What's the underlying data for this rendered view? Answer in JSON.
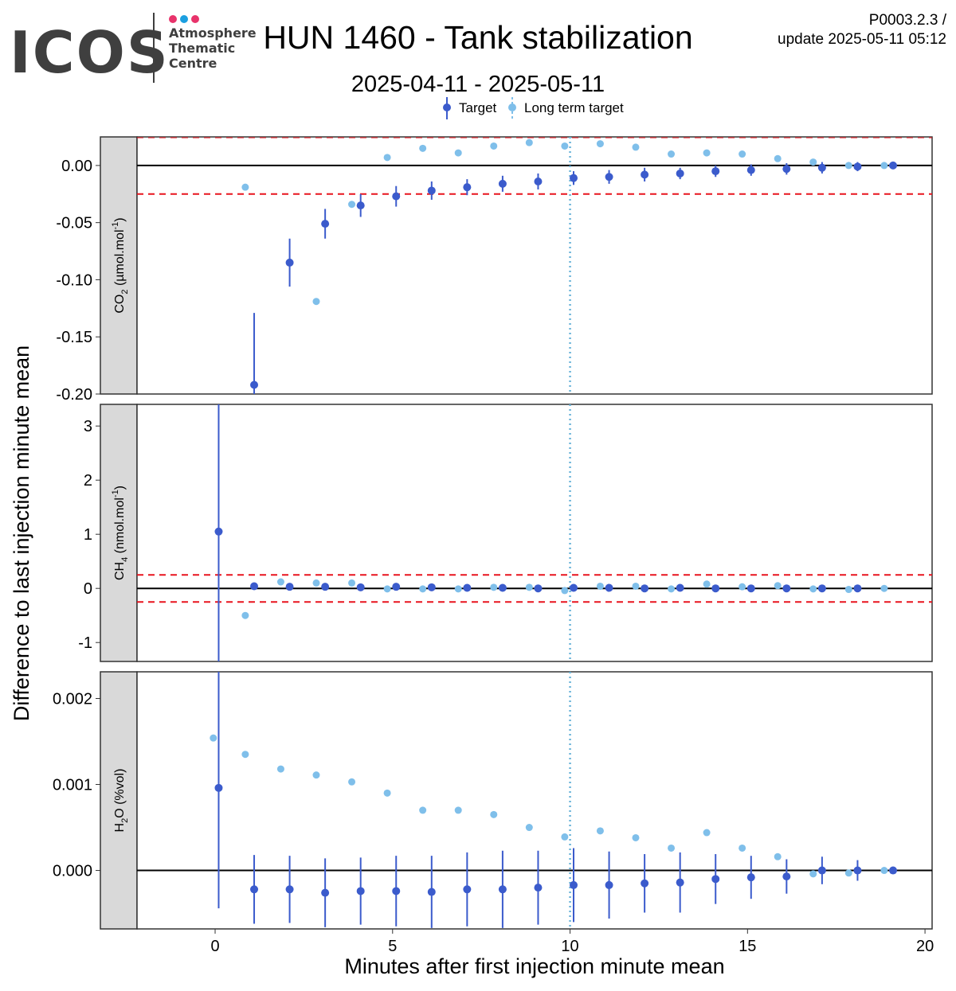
{
  "header": {
    "logo_text": "ICOS",
    "logo_sub": [
      "Atmosphere",
      "Thematic",
      "Centre"
    ],
    "logo_dot_colors": [
      "#e8336b",
      "#1b9fe0",
      "#e8336b"
    ],
    "title": "HUN 1460 - Tank stabilization",
    "subtitle": "2025-04-11 - 2025-05-11",
    "version_line1": "P0003.2.3 /",
    "version_line2": "update  2025-05-11 05:12"
  },
  "chart_data": {
    "type": "scatter",
    "xlabel": "Minutes after first injection minute mean",
    "ylabel": "Difference to last injection minute mean",
    "x_ticks": [
      0,
      5,
      10,
      15,
      20
    ],
    "xlim": [
      -2.2,
      20.2
    ],
    "vline_x": 10,
    "legend": {
      "position": "top",
      "items": [
        {
          "name": "Target",
          "color": "#3b5bcc"
        },
        {
          "name": "Long term target",
          "color": "#7fbfea"
        }
      ]
    },
    "colors": {
      "target": "#3b5bcc",
      "long_term": "#7fbfea",
      "threshold": "#e8141e",
      "vline": "#6ab4d9",
      "strip": "#d9d9d9"
    },
    "panels": [
      {
        "strip_label": "CO2 (µmol.mol-1)",
        "strip_main": "CO",
        "strip_sub": "2",
        "strip_rest": " (µmol.mol",
        "strip_sup": "-1",
        "strip_end": ")",
        "ylim": [
          -0.2,
          0.025
        ],
        "y_ticks": [
          0.0,
          -0.05,
          -0.1,
          -0.15,
          -0.2
        ],
        "y_tick_labels": [
          "0.00",
          "-0.05",
          "-0.10",
          "-0.15",
          "-0.20"
        ],
        "thresholds": [
          -0.025
        ],
        "top_threshold": 0.025,
        "target": {
          "x": [
            1.1,
            2.1,
            3.1,
            4.1,
            5.1,
            6.1,
            7.1,
            8.1,
            9.1,
            10.1,
            11.1,
            12.1,
            13.1,
            14.1,
            15.1,
            16.1,
            17.1,
            18.1,
            19.1
          ],
          "y": [
            -0.192,
            -0.085,
            -0.051,
            -0.035,
            -0.027,
            -0.022,
            -0.019,
            -0.016,
            -0.014,
            -0.011,
            -0.01,
            -0.008,
            -0.007,
            -0.005,
            -0.004,
            -0.003,
            -0.002,
            -0.001,
            0.0
          ],
          "err": [
            0.063,
            0.021,
            0.013,
            0.01,
            0.009,
            0.008,
            0.007,
            0.007,
            0.007,
            0.006,
            0.006,
            0.006,
            0.005,
            0.005,
            0.005,
            0.005,
            0.005,
            0.004,
            0.002
          ]
        },
        "long_term": {
          "x": [
            0.85,
            1.85,
            2.85,
            3.85,
            4.85,
            5.85,
            6.85,
            7.85,
            8.85,
            9.85,
            10.85,
            11.85,
            12.85,
            13.85,
            14.85,
            15.85,
            16.85,
            17.85,
            18.85
          ],
          "y": [
            -0.019,
            null,
            -0.119,
            -0.034,
            0.007,
            0.015,
            0.011,
            0.017,
            0.02,
            0.017,
            0.019,
            0.016,
            0.01,
            0.011,
            0.01,
            0.006,
            0.003,
            0.0,
            0.0
          ]
        }
      },
      {
        "strip_label": "CH4 (nmol.mol-1)",
        "strip_main": "CH",
        "strip_sub": "4",
        "strip_rest": " (nmol.mol",
        "strip_sup": "-1",
        "strip_end": ")",
        "ylim": [
          -1.35,
          3.4
        ],
        "y_ticks": [
          3,
          2,
          1,
          0,
          -1
        ],
        "y_tick_labels": [
          "3",
          "2",
          "1",
          "0",
          "-1"
        ],
        "thresholds": [
          0.25,
          -0.25
        ],
        "target": {
          "x": [
            0.1,
            1.1,
            2.1,
            3.1,
            4.1,
            5.1,
            6.1,
            7.1,
            8.1,
            9.1,
            10.1,
            11.1,
            12.1,
            13.1,
            14.1,
            15.1,
            16.1,
            17.1,
            18.1,
            19.1
          ],
          "y": [
            1.05,
            0.04,
            0.03,
            0.03,
            0.02,
            0.03,
            0.02,
            0.01,
            0.01,
            0.0,
            0.01,
            0.01,
            0.0,
            0.01,
            0.0,
            0.0,
            0.0,
            0.0,
            0.0,
            null
          ],
          "err": [
            5.0,
            0.01,
            0.01,
            0.01,
            0.01,
            0.01,
            0.01,
            0.01,
            0.01,
            0.01,
            0.01,
            0.01,
            0.01,
            0.01,
            0.01,
            0.01,
            0.01,
            0.01,
            0.01,
            0.0
          ]
        },
        "long_term": {
          "x": [
            0.85,
            1.85,
            2.85,
            3.85,
            4.85,
            5.85,
            6.85,
            7.85,
            8.85,
            9.85,
            10.85,
            11.85,
            12.85,
            13.85,
            14.85,
            15.85,
            16.85,
            17.85,
            18.85
          ],
          "y": [
            -0.5,
            0.12,
            0.1,
            0.1,
            -0.01,
            -0.01,
            -0.01,
            0.02,
            0.02,
            -0.04,
            0.04,
            0.04,
            -0.01,
            0.08,
            0.03,
            0.05,
            -0.01,
            -0.02,
            0.0
          ]
        }
      },
      {
        "strip_label": "H2O (%vol)",
        "strip_main": "H",
        "strip_sub": "2",
        "strip_rest": "O (%vol)",
        "strip_sup": "",
        "strip_end": "",
        "ylim": [
          -0.00068,
          0.00231
        ],
        "y_ticks": [
          0.002,
          0.001,
          0.0
        ],
        "y_tick_labels": [
          "0.002",
          "0.001",
          "0.000"
        ],
        "thresholds": [],
        "target": {
          "x": [
            0.1,
            1.1,
            2.1,
            3.1,
            4.1,
            5.1,
            6.1,
            7.1,
            8.1,
            9.1,
            10.1,
            11.1,
            12.1,
            13.1,
            14.1,
            15.1,
            16.1,
            17.1,
            18.1,
            19.1
          ],
          "y": [
            0.00096,
            -0.00022,
            -0.00022,
            -0.00026,
            -0.00024,
            -0.00024,
            -0.00025,
            -0.00022,
            -0.00022,
            -0.0002,
            -0.00017,
            -0.00017,
            -0.00015,
            -0.00014,
            -0.0001,
            -8e-05,
            -7e-05,
            0.0,
            0.0,
            0.0
          ],
          "err": [
            0.0014,
            0.0004,
            0.00039,
            0.0004,
            0.00039,
            0.00041,
            0.00042,
            0.00043,
            0.00045,
            0.00043,
            0.00043,
            0.00039,
            0.00034,
            0.00035,
            0.00029,
            0.00025,
            0.0002,
            0.00016,
            0.00012,
            2e-05
          ]
        },
        "long_term": {
          "x": [
            -0.05,
            0.85,
            1.85,
            2.85,
            3.85,
            4.85,
            5.85,
            6.85,
            7.85,
            8.85,
            9.85,
            10.85,
            11.85,
            12.85,
            13.85,
            14.85,
            15.85,
            16.85,
            17.85,
            18.85
          ],
          "y": [
            0.00154,
            0.00135,
            0.00118,
            0.00111,
            0.00103,
            0.0009,
            0.0007,
            0.0007,
            0.00065,
            0.0005,
            0.00039,
            0.00046,
            0.00038,
            0.00026,
            0.00044,
            0.00026,
            0.00016,
            -4e-05,
            -3e-05,
            0.0
          ]
        }
      }
    ]
  }
}
